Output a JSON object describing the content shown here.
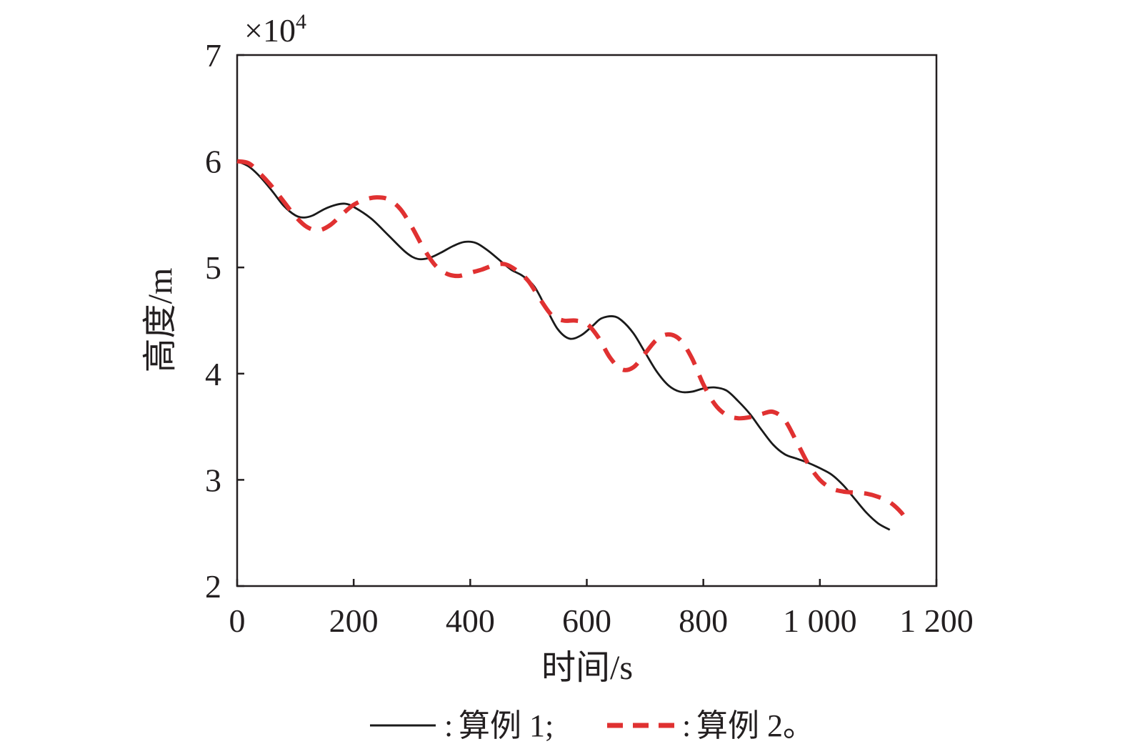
{
  "chart_data": {
    "type": "line",
    "title": "",
    "xlabel": "时间/s",
    "ylabel": "高度/m",
    "xlim": [
      0,
      1200
    ],
    "ylim": [
      2,
      7
    ],
    "y_scale_note": "×10",
    "y_scale_exponent": "4",
    "x_ticks": [
      0,
      200,
      400,
      600,
      800,
      1000,
      1200
    ],
    "x_tick_labels": [
      "0",
      "200",
      "400",
      "600",
      "800",
      "1 000",
      "1 200"
    ],
    "y_ticks": [
      2,
      3,
      4,
      5,
      6,
      7
    ],
    "y_tick_labels": [
      "2",
      "3",
      "4",
      "5",
      "6",
      "7"
    ],
    "grid": false,
    "legend_position": "bottom",
    "series": [
      {
        "name": "算例 1;",
        "color": "#1a1a1a",
        "style": "solid",
        "x": [
          0,
          20,
          40,
          60,
          80,
          100,
          115,
          130,
          150,
          170,
          185,
          200,
          230,
          260,
          290,
          310,
          330,
          350,
          370,
          390,
          410,
          430,
          450,
          470,
          490,
          510,
          530,
          550,
          570,
          590,
          610,
          625,
          645,
          660,
          680,
          700,
          720,
          740,
          760,
          780,
          800,
          820,
          840,
          860,
          880,
          900,
          920,
          940,
          960,
          980,
          1000,
          1020,
          1040,
          1060,
          1080,
          1100,
          1120
        ],
        "y": [
          6.0,
          5.95,
          5.85,
          5.72,
          5.58,
          5.49,
          5.47,
          5.49,
          5.55,
          5.59,
          5.6,
          5.57,
          5.46,
          5.3,
          5.14,
          5.08,
          5.09,
          5.14,
          5.2,
          5.24,
          5.23,
          5.16,
          5.07,
          4.98,
          4.92,
          4.82,
          4.62,
          4.42,
          4.33,
          4.36,
          4.45,
          4.52,
          4.54,
          4.5,
          4.38,
          4.2,
          4.02,
          3.89,
          3.83,
          3.83,
          3.86,
          3.87,
          3.84,
          3.74,
          3.62,
          3.47,
          3.33,
          3.24,
          3.2,
          3.16,
          3.11,
          3.05,
          2.95,
          2.82,
          2.69,
          2.59,
          2.53
        ]
      },
      {
        "name": "算例 2。",
        "color": "#e03131",
        "style": "dashed",
        "x": [
          0,
          20,
          40,
          60,
          80,
          100,
          120,
          140,
          160,
          180,
          200,
          220,
          240,
          260,
          280,
          300,
          320,
          340,
          360,
          380,
          400,
          420,
          440,
          460,
          480,
          500,
          520,
          540,
          560,
          580,
          600,
          620,
          640,
          660,
          680,
          700,
          720,
          740,
          760,
          780,
          800,
          820,
          840,
          860,
          880,
          900,
          920,
          940,
          960,
          980,
          1000,
          1020,
          1040,
          1060,
          1080,
          1100,
          1120,
          1140,
          1150
        ],
        "y": [
          6.0,
          5.98,
          5.88,
          5.76,
          5.62,
          5.48,
          5.38,
          5.35,
          5.4,
          5.5,
          5.59,
          5.64,
          5.66,
          5.64,
          5.55,
          5.38,
          5.18,
          5.02,
          4.94,
          4.92,
          4.95,
          4.98,
          5.02,
          5.03,
          4.97,
          4.87,
          4.7,
          4.55,
          4.5,
          4.5,
          4.47,
          4.34,
          4.15,
          4.04,
          4.06,
          4.19,
          4.32,
          4.37,
          4.32,
          4.15,
          3.9,
          3.71,
          3.61,
          3.58,
          3.59,
          3.62,
          3.64,
          3.56,
          3.36,
          3.15,
          3.0,
          2.92,
          2.89,
          2.88,
          2.87,
          2.84,
          2.79,
          2.69,
          2.6
        ]
      }
    ]
  }
}
